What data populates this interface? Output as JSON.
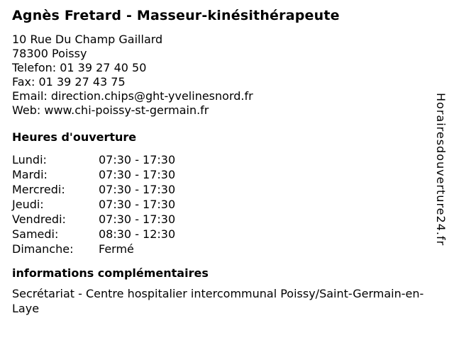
{
  "header": {
    "title": "Agnès Fretard - Masseur-kinésithérapeute"
  },
  "contact": {
    "street": "10 Rue Du Champ Gaillard",
    "city": "78300 Poissy",
    "phone_label": "Telefon:",
    "phone_value": "01 39 27 40 50",
    "fax_label": "Fax:",
    "fax_value": "01 39 27 43 75",
    "email_label": "Email:",
    "email_value": "direction.chips@ght-yvelinesnord.fr",
    "web_label": "Web:",
    "web_value": "www.chi-poissy-st-germain.fr"
  },
  "opening_hours": {
    "heading": "Heures d'ouverture",
    "rows": [
      {
        "day": "Lundi:",
        "time": "07:30 - 17:30"
      },
      {
        "day": "Mardi:",
        "time": "07:30 - 17:30"
      },
      {
        "day": "Mercredi:",
        "time": "07:30 - 17:30"
      },
      {
        "day": "Jeudi:",
        "time": "07:30 - 17:30"
      },
      {
        "day": "Vendredi:",
        "time": "07:30 - 17:30"
      },
      {
        "day": "Samedi:",
        "time": "08:30 - 12:30"
      },
      {
        "day": "Dimanche:",
        "time": "Fermé"
      }
    ]
  },
  "additional_info": {
    "heading": "informations complémentaires",
    "text": "Secrétariat - Centre hospitalier intercommunal Poissy/Saint-Germain-en-Laye"
  },
  "branding": {
    "vertical_text": "Horairesdouverture24.fr"
  },
  "colors": {
    "background": "#ffffff",
    "text": "#000000"
  }
}
